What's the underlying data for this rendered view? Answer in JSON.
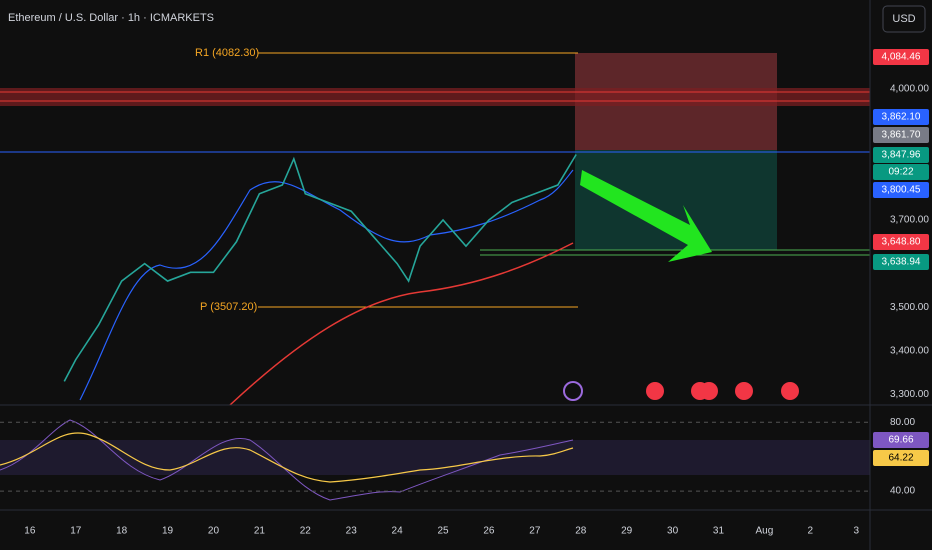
{
  "chart_data": {
    "type": "line",
    "title": "Ethereum / U.S. Dollar · 1h · ICMARKETS",
    "currency": "USD",
    "x": [
      16.75,
      17,
      17.5,
      18,
      18.5,
      19,
      19.5,
      20,
      20.5,
      21,
      21.5,
      21.75,
      22,
      22.5,
      23,
      23.5,
      24,
      24.25,
      24.5,
      25,
      25.5,
      26,
      26.5,
      27,
      27.5,
      27.9
    ],
    "values": [
      3330,
      3380,
      3460,
      3560,
      3600,
      3560,
      3580,
      3580,
      3650,
      3760,
      3780,
      3840,
      3760,
      3740,
      3720,
      3660,
      3600,
      3560,
      3640,
      3700,
      3640,
      3700,
      3740,
      3760,
      3780,
      3850
    ],
    "color": "#26a69a",
    "xlim": [
      15.35,
      34.3
    ],
    "ylim": [
      3276,
      4204
    ],
    "xticks": [
      16,
      17,
      18,
      19,
      20,
      21,
      22,
      23,
      24,
      25,
      26,
      27,
      28,
      29,
      30,
      31,
      {
        "value": 32,
        "label": "Aug"
      },
      {
        "value": 33,
        "label": "2"
      },
      {
        "value": 34,
        "label": "3"
      }
    ],
    "yticks": [
      {
        "value": 4000,
        "label": "4,000.00"
      },
      {
        "value": 3700,
        "label": "3,700.00"
      },
      {
        "value": 3500,
        "label": "3,500.00"
      },
      {
        "value": 3400,
        "label": "3,400.00"
      },
      {
        "value": 3300,
        "label": "3,300.00"
      }
    ],
    "annotations": [
      "R1 (4082.30)",
      "P (3507.20)"
    ],
    "price_labels": [
      {
        "label": "4,084.46",
        "color": "#f23645"
      },
      {
        "label": "3,862.10",
        "color": "#2962ff"
      },
      {
        "label": "3,861.70",
        "color": "#787b86"
      },
      {
        "label": "3,847.96",
        "color": "#089981"
      },
      {
        "label": "09:22",
        "color": "#089981"
      },
      {
        "label": "3,800.45",
        "color": "#2962ff"
      },
      {
        "label": "3,648.80",
        "color": "#f23645"
      },
      {
        "label": "3,638.94",
        "color": "#089981"
      }
    ],
    "rsi": {
      "ylim": [
        29,
        90
      ],
      "yticks": [
        {
          "value": 80,
          "label": "80.00"
        },
        {
          "value": 40,
          "label": "40.00"
        }
      ],
      "labels": [
        {
          "label": "69.66",
          "color": "#7e57c2"
        },
        {
          "label": "64.22",
          "color": "#f7c948"
        }
      ]
    }
  }
}
